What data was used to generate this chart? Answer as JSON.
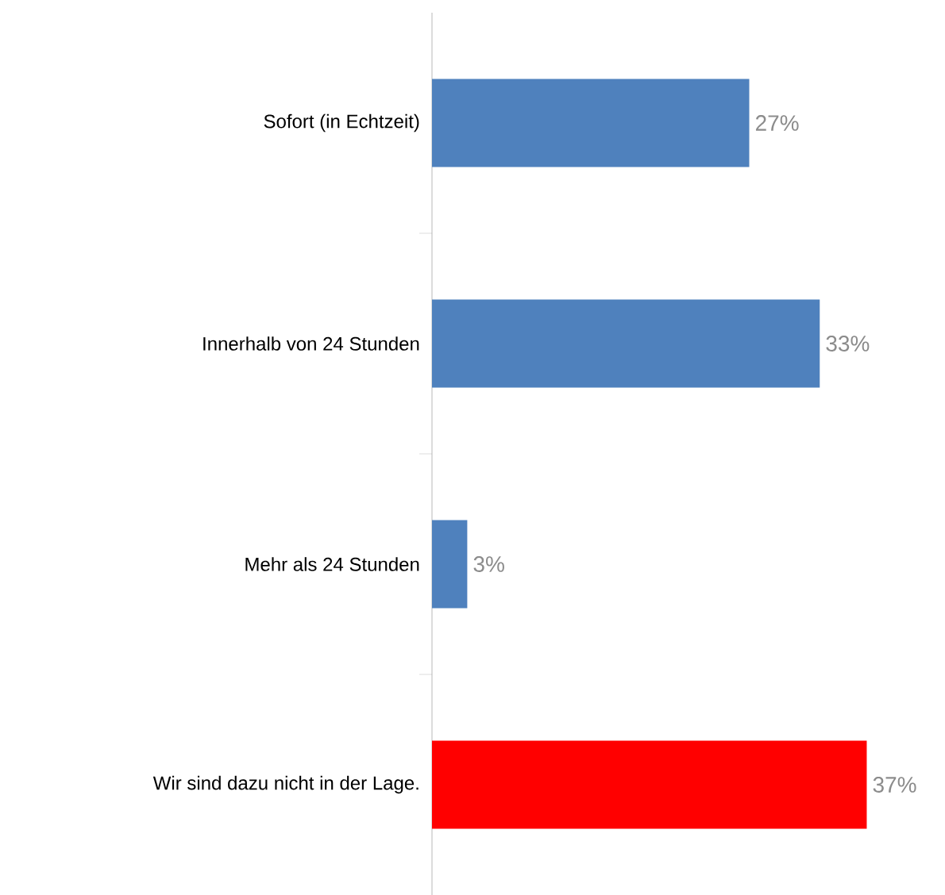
{
  "chart_data": {
    "type": "bar",
    "orientation": "horizontal",
    "categories": [
      "Sofort (in Echtzeit)",
      "Innerhalb von 24 Stunden",
      "Mehr als 24 Stunden",
      "Wir sind dazu nicht in der Lage."
    ],
    "values": [
      27,
      33,
      3,
      37
    ],
    "colors": [
      "#4f81bd",
      "#4f81bd",
      "#4f81bd",
      "#ff0000"
    ],
    "value_labels": [
      "27%",
      "33%",
      "3%",
      "37%"
    ]
  }
}
